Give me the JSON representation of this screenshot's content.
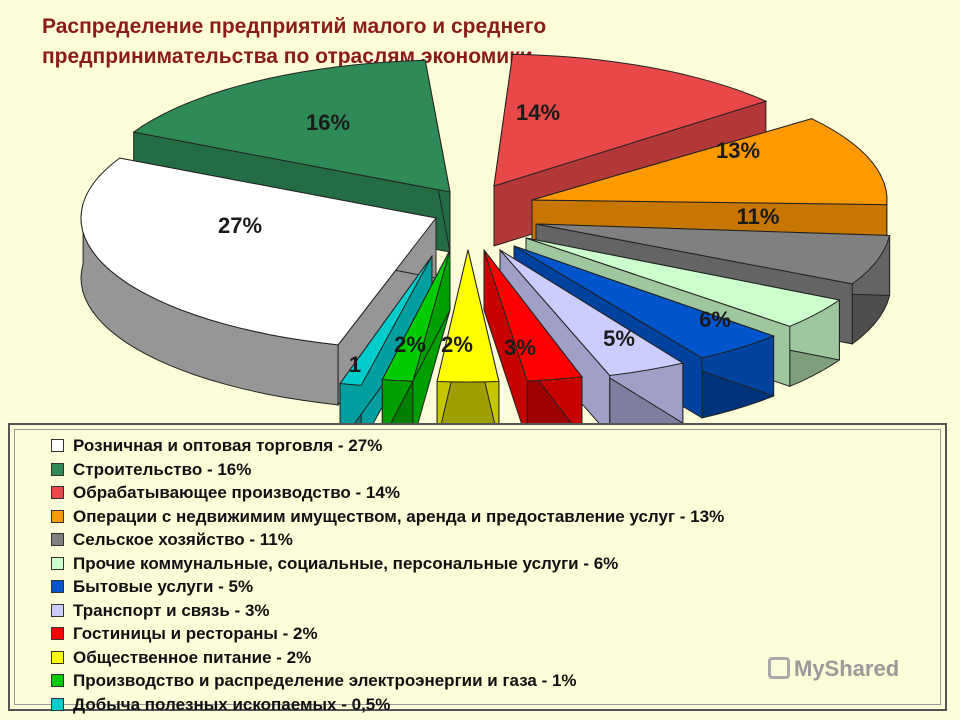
{
  "title": {
    "line1": "Распределение предприятий малого и среднего",
    "line2": "предпринимательства по отраслям экономики"
  },
  "chart_data": {
    "type": "pie",
    "title": "Распределение предприятий малого и среднего предпринимательства по отраслям экономики",
    "categories": [
      "Розничная и оптовая торговля",
      "Строительство",
      "Обрабатывающее производство",
      "Операции с недвижимим имуществом, аренда и предоставление услуг",
      "Сельское хозяйство",
      "Прочие коммунальные, социальные, персональные услуги",
      "Бытовые услуги",
      "Транспорт и связь",
      "Гостиницы и рестораны",
      "Общественное питание",
      "Производство и распределение электроэнергии и газа",
      "Добыча полезных ископаемых"
    ],
    "values": [
      27,
      16,
      14,
      13,
      11,
      6,
      5,
      3,
      2,
      2,
      1,
      0.5
    ],
    "slice_labels": [
      "27%",
      "16%",
      "14%",
      "13%",
      "11%",
      "6%",
      "5%",
      "3%",
      "2%",
      "2%",
      "1",
      ""
    ],
    "colors": [
      "#ffffff",
      "#2e8b57",
      "#e84848",
      "#ff9900",
      "#808080",
      "#ccffcc",
      "#0055cc",
      "#ccccff",
      "#ff0000",
      "#ffff00",
      "#00cc00",
      "#00cccc"
    ],
    "legend_position": "bottom"
  },
  "legend": {
    "items": [
      "Розничная и оптовая торговля - 27%",
      "Строительство - 16%",
      "Обрабатывающее производство - 14%",
      "Операции с недвижимим имуществом, аренда и предоставление услуг - 13%",
      "Сельское хозяйство - 11%",
      "Прочие коммунальные, социальные, персональные услуги  - 6%",
      "Бытовые услуги - 5%",
      "Транспорт и связь - 3%",
      "Гостиницы и рестораны - 2%",
      "Общественное питание  - 2%",
      "Производство и распределение электроэнергии и газа - 1%",
      "Добыча полезных ископаемых - 0,5%"
    ]
  },
  "watermark": "MyShared"
}
